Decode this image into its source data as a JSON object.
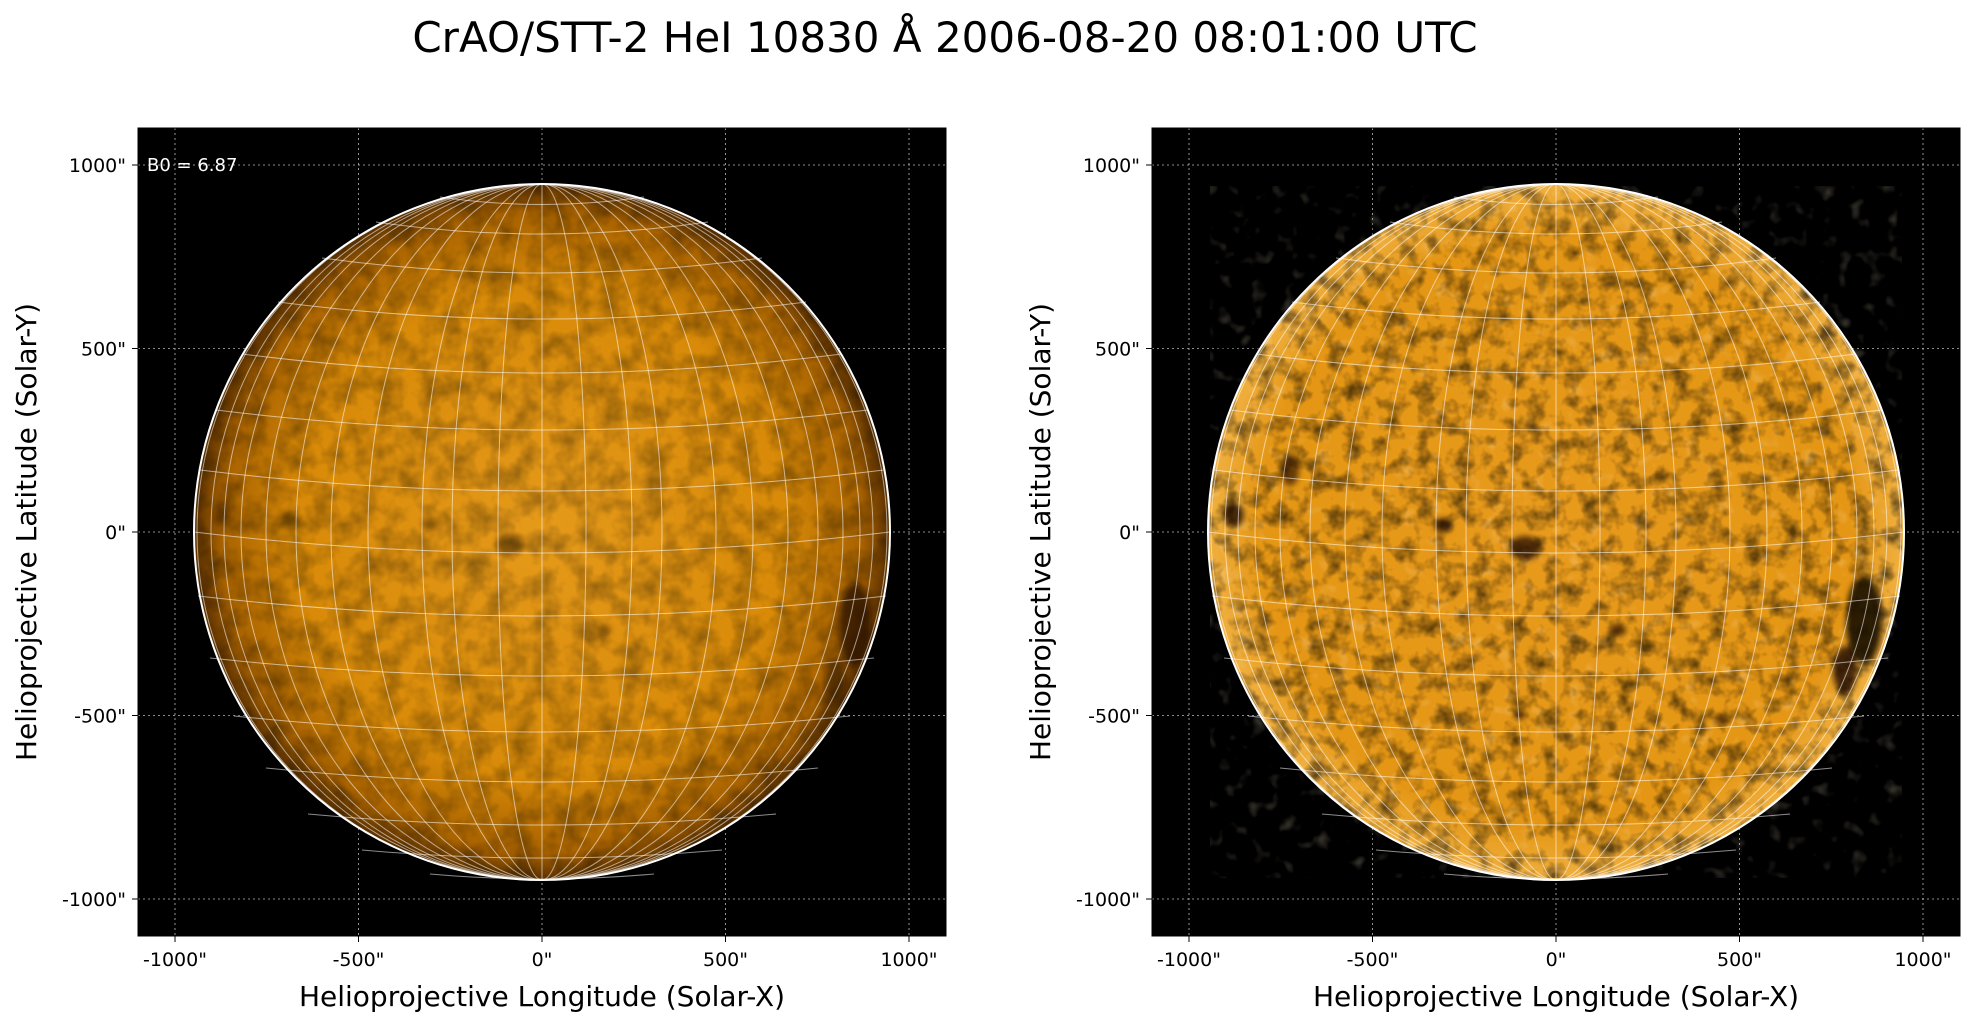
{
  "figure": {
    "title": "CrAO/STT-2 HeI 10830 Å 2006-08-20 08:01:00 UTC",
    "colors": {
      "background": "#000000",
      "disk_base": "#e08a00",
      "disk_dark": "#7a4200",
      "grid": "#ffffff",
      "limb": "#ffffff"
    }
  },
  "panels": [
    {
      "id": "left",
      "annotation": "B0 = 6.87",
      "xlabel": "Helioprojective Longitude (Solar-X)",
      "ylabel": "Helioprojective Latitude (Solar-Y)",
      "x_ticks": [
        "-1000\"",
        "-500\"",
        "0\"",
        "500\"",
        "1000\""
      ],
      "y_ticks": [
        "1000\"",
        "500\"",
        "0\"",
        "-500\"",
        "-1000\""
      ],
      "contrast": "low"
    },
    {
      "id": "right",
      "annotation": "",
      "xlabel": "Helioprojective Longitude (Solar-X)",
      "ylabel": "Helioprojective Latitude (Solar-Y)",
      "x_ticks": [
        "-1000\"",
        "-500\"",
        "0\"",
        "500\"",
        "1000\""
      ],
      "y_ticks": [
        "1000\"",
        "500\"",
        "0\"",
        "-500\"",
        "-1000\""
      ],
      "contrast": "high"
    }
  ]
}
